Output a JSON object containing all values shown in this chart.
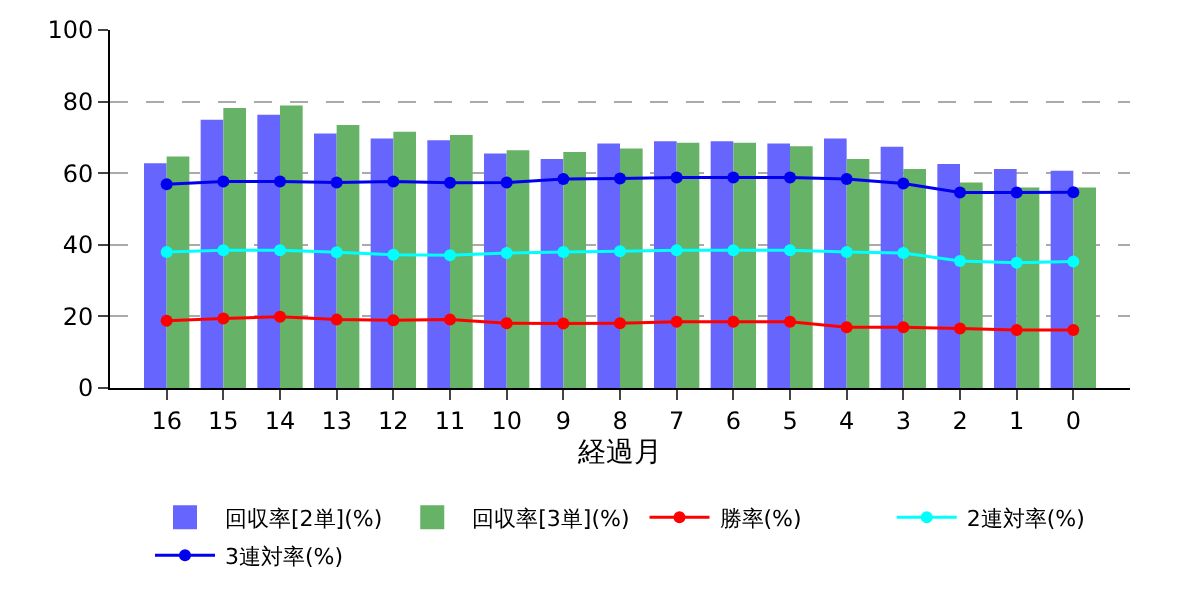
{
  "chart_data": {
    "type": "bar",
    "xlabel": "経過月",
    "categories": [
      "16",
      "15",
      "14",
      "13",
      "12",
      "11",
      "10",
      "9",
      "8",
      "7",
      "6",
      "5",
      "4",
      "3",
      "2",
      "1",
      "0"
    ],
    "series": [
      {
        "name": "回収率[2単](%)",
        "color": "#6666ff",
        "values": [
          62.8,
          74.9,
          76.3,
          71.1,
          69.7,
          69.2,
          65.5,
          64.0,
          68.3,
          68.9,
          68.9,
          68.3,
          69.7,
          67.4,
          62.6,
          61.2,
          60.7
        ]
      },
      {
        "name": "回収率[3単](%)",
        "color": "#66b266",
        "values": [
          64.7,
          78.2,
          78.9,
          73.5,
          71.6,
          70.7,
          66.4,
          65.9,
          66.9,
          68.5,
          68.5,
          67.5,
          64.0,
          61.2,
          57.4,
          56.0,
          56.0
        ]
      },
      {
        "name": "勝率(%)",
        "type": "line",
        "color": "#ff0000",
        "values": [
          18.8,
          19.4,
          19.9,
          19.1,
          18.9,
          19.1,
          18.1,
          18.0,
          18.1,
          18.5,
          18.5,
          18.5,
          17.0,
          17.0,
          16.6,
          16.2,
          16.2
        ]
      },
      {
        "name": "2連対率(%)",
        "type": "line",
        "color": "#00ffff",
        "values": [
          38.0,
          38.5,
          38.5,
          37.9,
          37.2,
          37.1,
          37.7,
          38.0,
          38.2,
          38.5,
          38.5,
          38.5,
          38.0,
          37.7,
          35.5,
          35.0,
          35.3
        ]
      },
      {
        "name": "3連対率(%)",
        "type": "line",
        "color": "#0000ee",
        "values": [
          56.9,
          57.7,
          57.7,
          57.4,
          57.7,
          57.3,
          57.4,
          58.4,
          58.5,
          58.8,
          58.8,
          58.8,
          58.4,
          57.1,
          54.6,
          54.6,
          54.7
        ]
      }
    ],
    "ylim": [
      0,
      100
    ],
    "yticks": [
      0,
      20,
      40,
      60,
      80,
      100
    ],
    "grid": "y",
    "legend": "bottom",
    "marker": "circle",
    "line_style": "solid"
  }
}
